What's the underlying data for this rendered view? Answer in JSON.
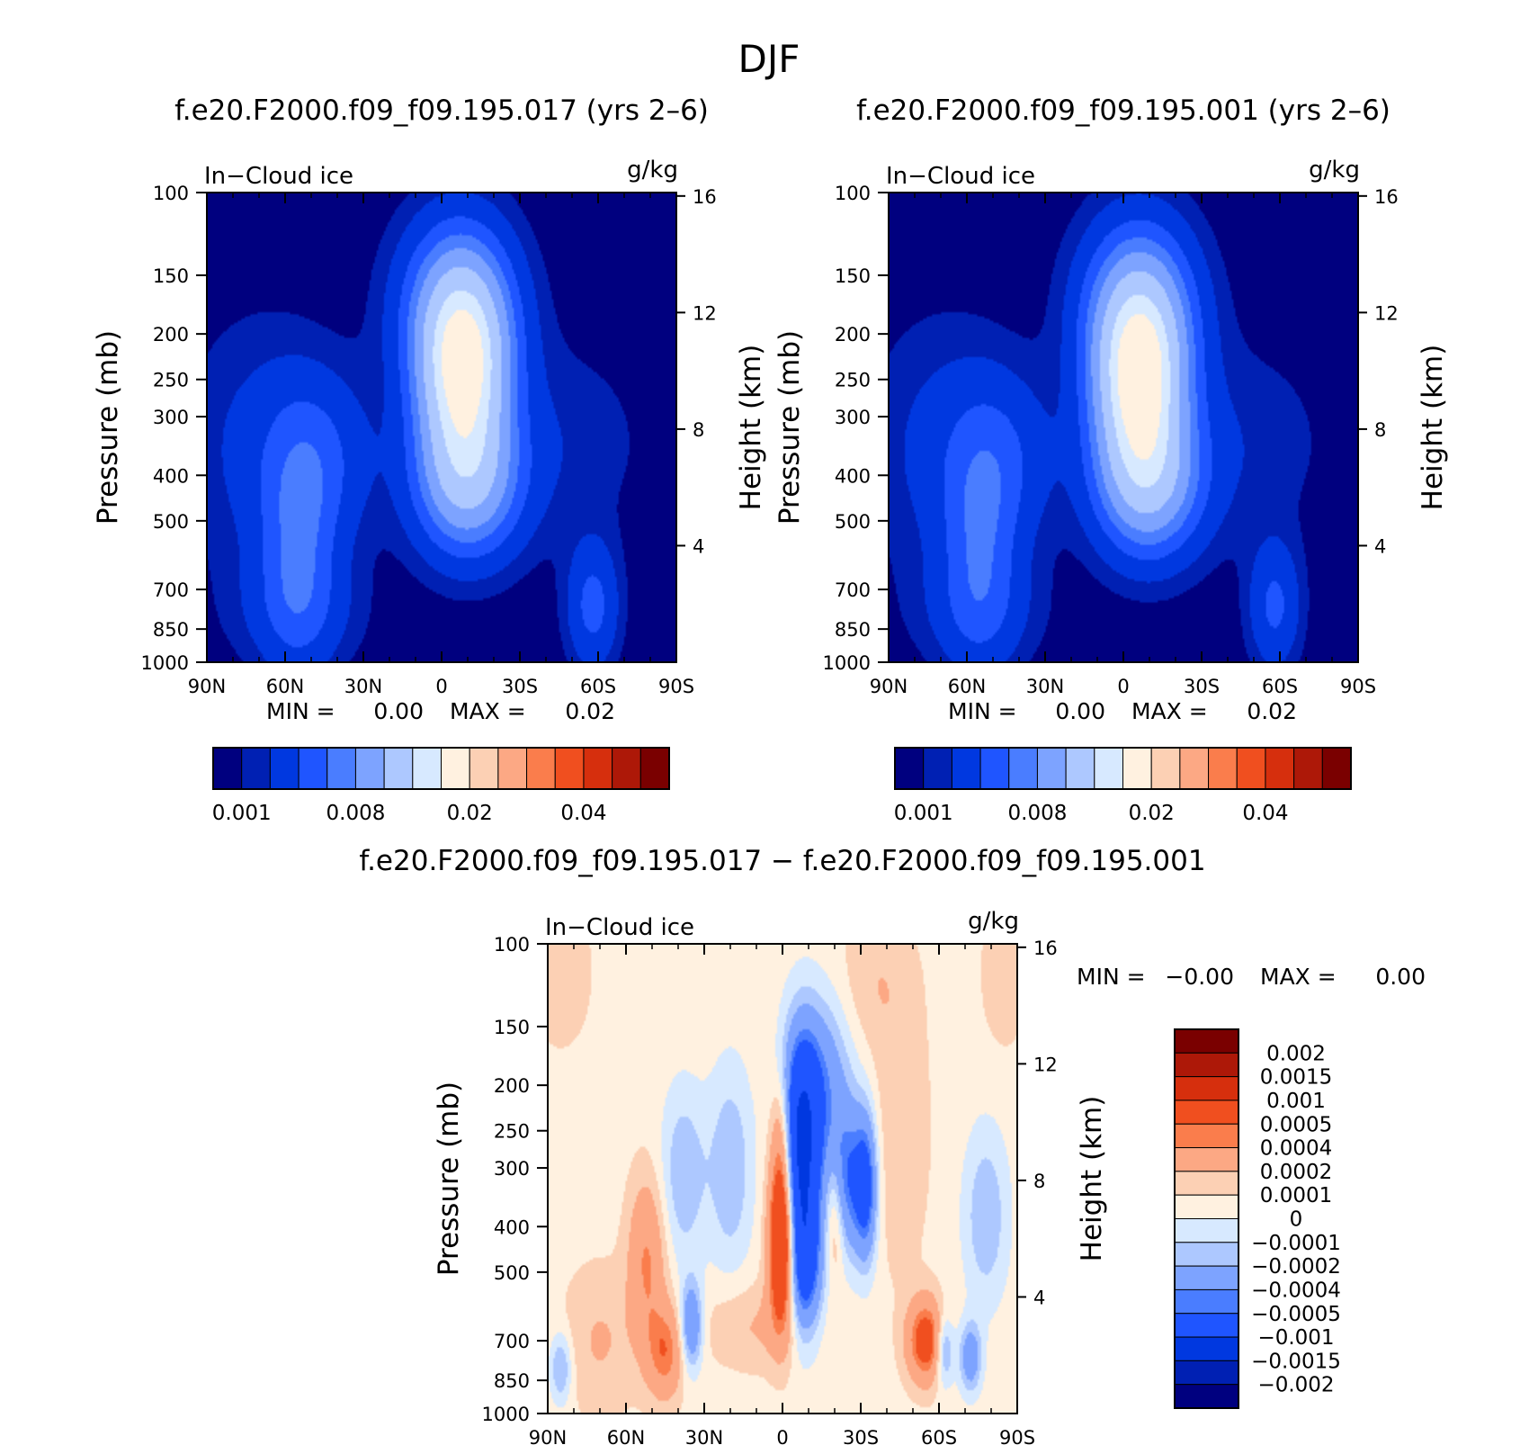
{
  "figure": {
    "title": "DJF"
  },
  "chart_data": [
    {
      "type": "heatmap",
      "title": "f.e20.F2000.f09_f09.195.017 (yrs 2–6)",
      "left_label": "In−Cloud ice",
      "units": "g/kg",
      "ylabel": "Pressure (mb)",
      "ylabel_right": "Height (km)",
      "x_tick_labels": [
        "90N",
        "60N",
        "30N",
        "0",
        "30S",
        "60S",
        "90S"
      ],
      "x_ticks": [
        -90,
        -60,
        -30,
        0,
        30,
        60,
        90
      ],
      "xlim": [
        -90,
        90
      ],
      "y_tick_labels": [
        "100",
        "150",
        "200",
        "250",
        "300",
        "400",
        "500",
        "700",
        "850",
        "1000"
      ],
      "y_ticks": [
        100,
        150,
        200,
        250,
        300,
        400,
        500,
        700,
        850,
        1000
      ],
      "ylim": [
        1000,
        100
      ],
      "y_scale": "log",
      "height_ticks": [
        16,
        12,
        8,
        4
      ],
      "min_label": "MIN =",
      "min_value": "0.00",
      "max_label": "MAX =",
      "max_value": "0.02",
      "colorbar_labels": [
        "0.001",
        "0.008",
        "0.02",
        "0.04"
      ],
      "colorbar_colors": [
        "#00007f",
        "#0020b3",
        "#0038e0",
        "#1f55ff",
        "#4a7dff",
        "#7da3ff",
        "#adc8ff",
        "#d7e9ff",
        "#fff1e0",
        "#fcd0b4",
        "#fca884",
        "#fa7d4c",
        "#f04f1f",
        "#d62f0d",
        "#ad1808",
        "#7a0000"
      ],
      "levels": [
        0.001,
        0.002,
        0.004,
        0.006,
        0.008,
        0.011,
        0.015,
        0.018
      ],
      "features": [
        {
          "lat": 8,
          "p": 240,
          "amp": 0.0175,
          "w": 12,
          "h": 0.34
        },
        {
          "lat": 10,
          "p": 420,
          "amp": 0.009,
          "w": 14,
          "h": 0.25
        },
        {
          "lat": 6,
          "p": 170,
          "amp": 0.006,
          "w": 16,
          "h": 0.3
        },
        {
          "lat": -55,
          "p": 580,
          "amp": 0.0045,
          "w": 10,
          "h": 0.4
        },
        {
          "lat": -45,
          "p": 370,
          "amp": 0.003,
          "w": 14,
          "h": 0.3
        },
        {
          "lat": -55,
          "p": 780,
          "amp": 0.002,
          "w": 18,
          "h": 0.2
        },
        {
          "lat": -70,
          "p": 350,
          "amp": 0.0022,
          "w": 20,
          "h": 0.45
        },
        {
          "lat": 58,
          "p": 760,
          "amp": 0.0045,
          "w": 7,
          "h": 0.22
        },
        {
          "lat": 45,
          "p": 340,
          "amp": 0.0015,
          "w": 24,
          "h": 0.35
        }
      ]
    },
    {
      "type": "heatmap",
      "title": "f.e20.F2000.f09_f09.195.001 (yrs 2–6)",
      "left_label": "In−Cloud ice",
      "units": "g/kg",
      "ylabel": "Pressure (mb)",
      "ylabel_right": "Height (km)",
      "x_tick_labels": [
        "90N",
        "60N",
        "30N",
        "0",
        "30S",
        "60S",
        "90S"
      ],
      "x_ticks": [
        -90,
        -60,
        -30,
        0,
        30,
        60,
        90
      ],
      "xlim": [
        -90,
        90
      ],
      "y_tick_labels": [
        "100",
        "150",
        "200",
        "250",
        "300",
        "400",
        "500",
        "700",
        "850",
        "1000"
      ],
      "y_ticks": [
        100,
        150,
        200,
        250,
        300,
        400,
        500,
        700,
        850,
        1000
      ],
      "ylim": [
        1000,
        100
      ],
      "y_scale": "log",
      "height_ticks": [
        16,
        12,
        8,
        4
      ],
      "min_label": "MIN =",
      "min_value": "0.00",
      "max_label": "MAX =",
      "max_value": "0.02",
      "colorbar_labels": [
        "0.001",
        "0.008",
        "0.02",
        "0.04"
      ],
      "colorbar_colors": [
        "#00007f",
        "#0020b3",
        "#0038e0",
        "#1f55ff",
        "#4a7dff",
        "#7da3ff",
        "#adc8ff",
        "#d7e9ff",
        "#fff1e0",
        "#fcd0b4",
        "#fca884",
        "#fa7d4c",
        "#f04f1f",
        "#d62f0d",
        "#ad1808",
        "#7a0000"
      ],
      "levels": [
        0.001,
        0.002,
        0.004,
        0.006,
        0.008,
        0.011,
        0.015,
        0.018
      ],
      "features": [
        {
          "lat": 6,
          "p": 250,
          "amp": 0.0185,
          "w": 12,
          "h": 0.34
        },
        {
          "lat": 10,
          "p": 420,
          "amp": 0.009,
          "w": 14,
          "h": 0.25
        },
        {
          "lat": 6,
          "p": 170,
          "amp": 0.006,
          "w": 16,
          "h": 0.3
        },
        {
          "lat": -55,
          "p": 580,
          "amp": 0.0042,
          "w": 10,
          "h": 0.4
        },
        {
          "lat": -45,
          "p": 370,
          "amp": 0.0028,
          "w": 14,
          "h": 0.3
        },
        {
          "lat": -55,
          "p": 780,
          "amp": 0.0018,
          "w": 18,
          "h": 0.2
        },
        {
          "lat": -70,
          "p": 350,
          "amp": 0.0022,
          "w": 20,
          "h": 0.45
        },
        {
          "lat": 58,
          "p": 760,
          "amp": 0.0042,
          "w": 7,
          "h": 0.22
        },
        {
          "lat": 45,
          "p": 340,
          "amp": 0.0015,
          "w": 24,
          "h": 0.35
        }
      ]
    },
    {
      "type": "heatmap",
      "title": "f.e20.F2000.f09_f09.195.017 − f.e20.F2000.f09_f09.195.001",
      "left_label": "In−Cloud ice",
      "units": "g/kg",
      "ylabel": "Pressure (mb)",
      "ylabel_right": "Height (km)",
      "x_tick_labels": [
        "90N",
        "60N",
        "30N",
        "0",
        "30S",
        "60S",
        "90S"
      ],
      "x_ticks": [
        -90,
        -60,
        -30,
        0,
        30,
        60,
        90
      ],
      "xlim": [
        -90,
        90
      ],
      "y_tick_labels": [
        "100",
        "150",
        "200",
        "250",
        "300",
        "400",
        "500",
        "700",
        "850",
        "1000"
      ],
      "y_ticks": [
        100,
        150,
        200,
        250,
        300,
        400,
        500,
        700,
        850,
        1000
      ],
      "ylim": [
        1000,
        100
      ],
      "y_scale": "log",
      "height_ticks": [
        16,
        12,
        8,
        4
      ],
      "min_label": "MIN =",
      "min_value": "−0.00",
      "max_label": "MAX =",
      "max_value": "0.00",
      "colorbar_labels": [
        "0.002",
        "0.0015",
        "0.001",
        "0.0005",
        "0.0004",
        "0.0002",
        "0.0001",
        "0",
        "−0.0001",
        "−0.0002",
        "−0.0004",
        "−0.0005",
        "−0.001",
        "−0.0015",
        "−0.002"
      ],
      "colorbar_colors": [
        "#7a0000",
        "#ad1808",
        "#d62f0d",
        "#f04f1f",
        "#fa7d4c",
        "#fca884",
        "#fcd0b4",
        "#fff1e0",
        "#d7e9ff",
        "#adc8ff",
        "#7da3ff",
        "#4a7dff",
        "#1f55ff",
        "#0038e0",
        "#0020b3",
        "#00007f"
      ],
      "levels": [
        -0.002,
        -0.0015,
        -0.001,
        -0.0005,
        -0.0004,
        -0.0002,
        -0.0001,
        0,
        0.0001,
        0.0002,
        0.0004,
        0.0005,
        0.001,
        0.0015,
        0.002
      ],
      "features": [
        {
          "lat": 0,
          "p": 430,
          "amp": 0.0011,
          "w": 3.5,
          "h": 0.28
        },
        {
          "lat": 0,
          "p": 260,
          "amp": 0.0004,
          "w": 3,
          "h": 0.22
        },
        {
          "lat": 7,
          "p": 270,
          "amp": -0.0011,
          "w": 5,
          "h": 0.35
        },
        {
          "lat": 8,
          "p": 480,
          "amp": -0.0007,
          "w": 5,
          "h": 0.25
        },
        {
          "lat": 15,
          "p": 200,
          "amp": -0.0004,
          "w": 8,
          "h": 0.3
        },
        {
          "lat": 20,
          "p": 380,
          "amp": 0.0003,
          "w": 2.5,
          "h": 0.22
        },
        {
          "lat": 25,
          "p": 320,
          "amp": -0.0005,
          "w": 5,
          "h": 0.25
        },
        {
          "lat": 32,
          "p": 330,
          "amp": -0.0006,
          "w": 3,
          "h": 0.25
        },
        {
          "lat": -52,
          "p": 470,
          "amp": 0.00035,
          "w": 5,
          "h": 0.28
        },
        {
          "lat": -45,
          "p": 740,
          "amp": 0.0004,
          "w": 5,
          "h": 0.16
        },
        {
          "lat": -35,
          "p": 650,
          "amp": -0.0005,
          "w": 3,
          "h": 0.15
        },
        {
          "lat": -38,
          "p": 310,
          "amp": -0.00025,
          "w": 6,
          "h": 0.3
        },
        {
          "lat": -20,
          "p": 300,
          "amp": -0.00025,
          "w": 6,
          "h": 0.35
        },
        {
          "lat": 55,
          "p": 700,
          "amp": 0.0006,
          "w": 5,
          "h": 0.14
        },
        {
          "lat": 62,
          "p": 730,
          "amp": -0.0004,
          "w": 2.5,
          "h": 0.12
        },
        {
          "lat": 72,
          "p": 760,
          "amp": -0.0004,
          "w": 3,
          "h": 0.12
        },
        {
          "lat": 45,
          "p": 250,
          "amp": 0.00012,
          "w": 8,
          "h": 0.5
        },
        {
          "lat": 35,
          "p": 120,
          "amp": 0.00012,
          "w": 10,
          "h": 0.25
        },
        {
          "lat": 85,
          "p": 115,
          "amp": 0.00012,
          "w": 6,
          "h": 0.25
        },
        {
          "lat": -85,
          "p": 115,
          "amp": 0.00012,
          "w": 8,
          "h": 0.25
        },
        {
          "lat": 78,
          "p": 380,
          "amp": -0.00025,
          "w": 6,
          "h": 0.3
        },
        {
          "lat": -85,
          "p": 800,
          "amp": -0.0003,
          "w": 3,
          "h": 0.12
        },
        {
          "lat": -70,
          "p": 700,
          "amp": 0.00015,
          "w": 10,
          "h": 0.25
        },
        {
          "lat": -10,
          "p": 650,
          "amp": 0.00015,
          "w": 15,
          "h": 0.15
        }
      ]
    }
  ]
}
